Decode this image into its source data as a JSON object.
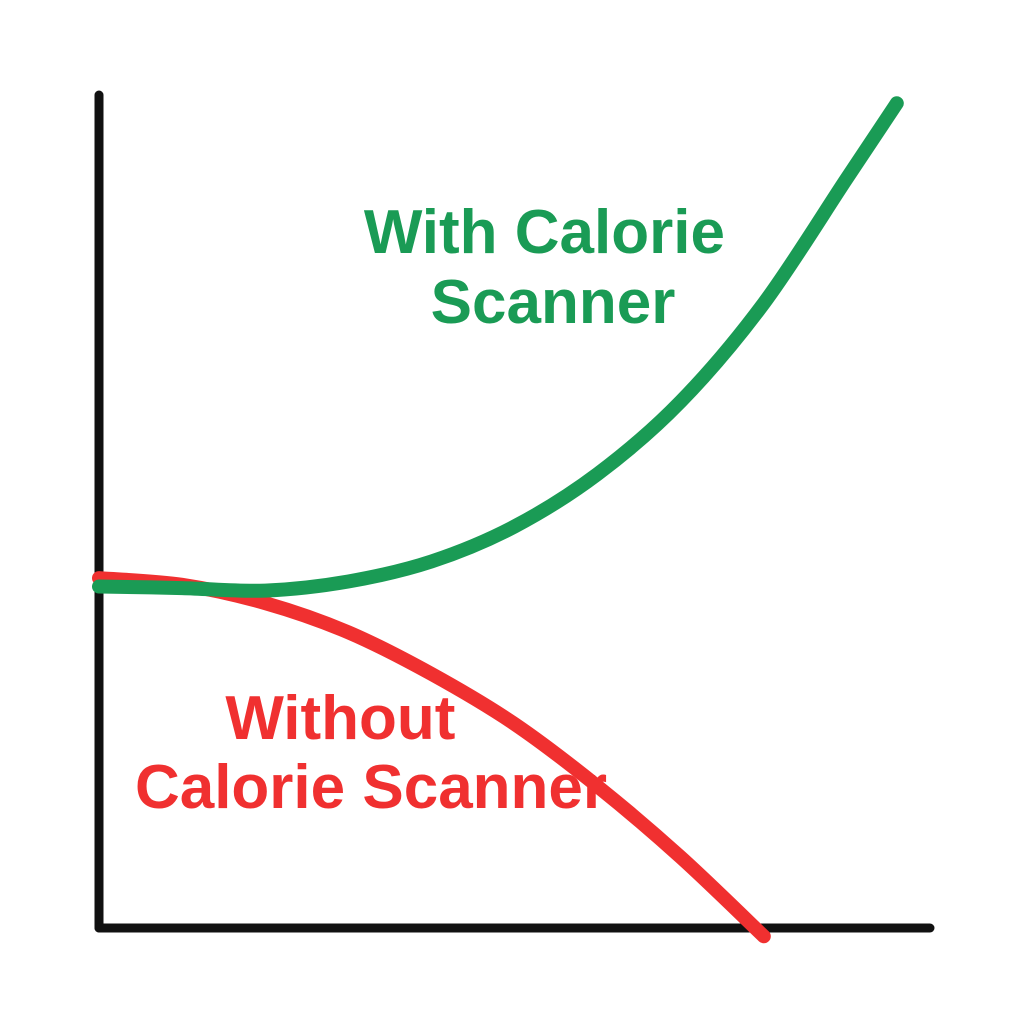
{
  "chart_data": {
    "type": "line",
    "title": "",
    "xlabel": "",
    "ylabel": "",
    "xlim": [
      0,
      100
    ],
    "ylim": [
      0,
      100
    ],
    "grid": false,
    "legend": "none",
    "axis_color": "#111111",
    "series": [
      {
        "name": "With Calorie Scanner",
        "label_lines": [
          "With Calorie",
          "Scanner"
        ],
        "color": "#1a9b55",
        "x": [
          0,
          10,
          20,
          30,
          40,
          50,
          60,
          70,
          80,
          90,
          96
        ],
        "y": [
          41,
          40.8,
          40.5,
          41.6,
          44,
          48.2,
          54.5,
          63.2,
          75,
          90,
          99
        ]
      },
      {
        "name": "Without Calorie Scanner",
        "label_lines": [
          "Without",
          "Calorie Scanner"
        ],
        "color": "#f03030",
        "x": [
          0,
          10,
          20,
          30,
          40,
          50,
          60,
          70,
          80
        ],
        "y": [
          42,
          41.2,
          39,
          35.5,
          30.5,
          24.5,
          17,
          8.5,
          -1
        ]
      }
    ]
  }
}
